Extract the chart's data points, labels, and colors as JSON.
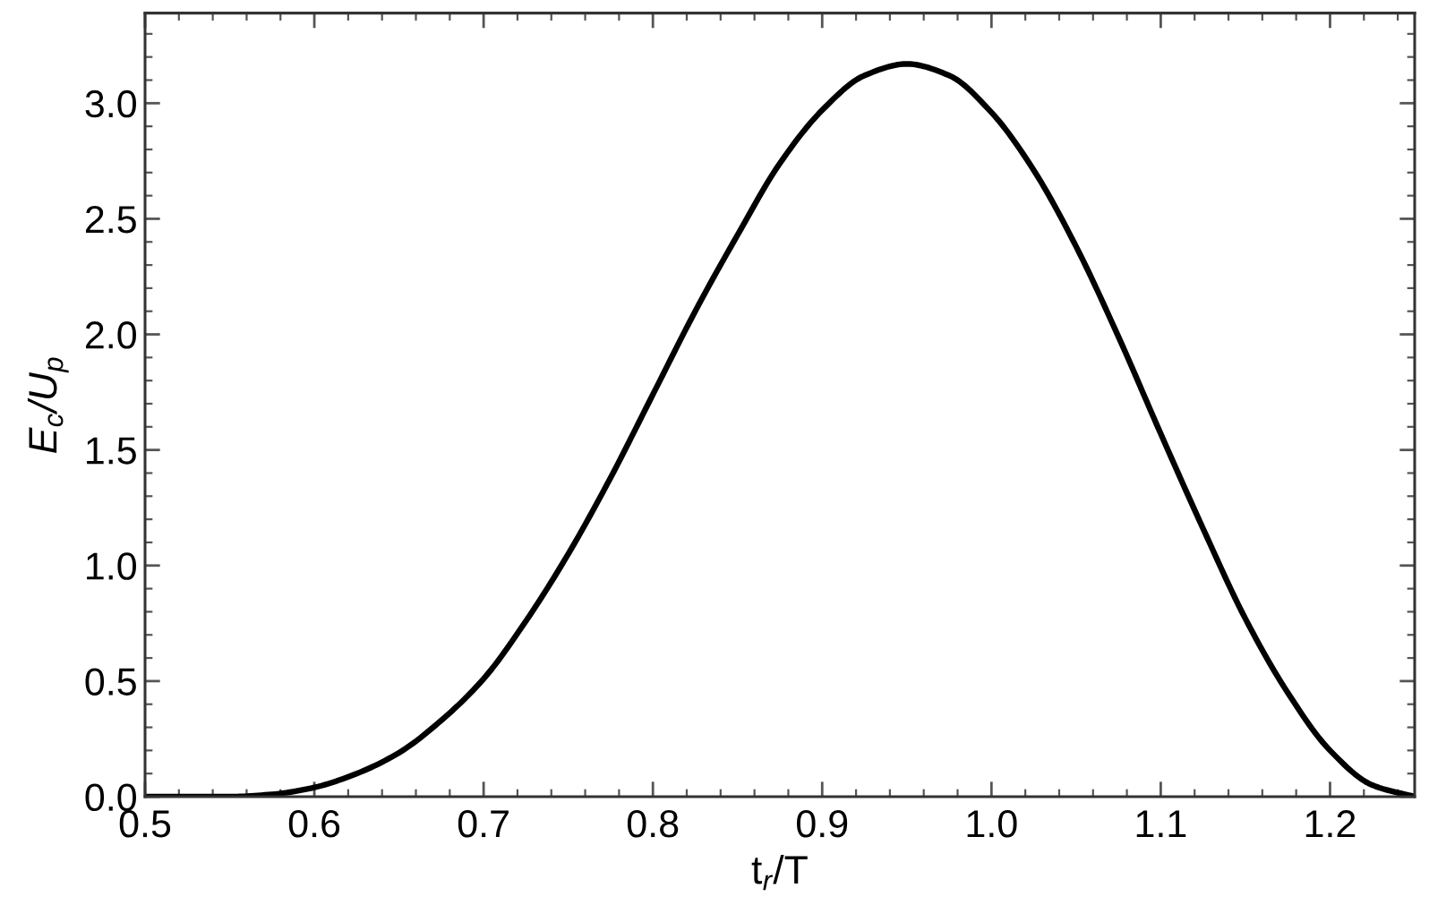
{
  "chart_data": {
    "type": "line",
    "xlabel": "t$_{r}$/T",
    "ylabel": "E$_{c}$/U$_{p}$",
    "x": [
      0.5,
      0.525,
      0.55,
      0.575,
      0.6,
      0.625,
      0.65,
      0.675,
      0.7,
      0.725,
      0.75,
      0.775,
      0.8,
      0.825,
      0.85,
      0.875,
      0.9,
      0.925,
      0.95,
      0.975,
      1.0,
      1.025,
      1.05,
      1.075,
      1.1,
      1.125,
      1.15,
      1.175,
      1.2,
      1.225,
      1.25
    ],
    "series": [
      {
        "color": "#000000",
        "values": [
          0.0,
          0.0,
          0.0,
          0.01,
          0.04,
          0.1,
          0.19,
          0.33,
          0.51,
          0.76,
          1.05,
          1.38,
          1.74,
          2.1,
          2.43,
          2.74,
          2.97,
          3.12,
          3.17,
          3.12,
          2.96,
          2.71,
          2.38,
          1.99,
          1.57,
          1.16,
          0.77,
          0.45,
          0.2,
          0.05,
          0.0
        ]
      }
    ],
    "xlim": [
      0.5,
      1.25
    ],
    "ylim": [
      0,
      3.39
    ],
    "xticks": [
      0.5,
      0.6,
      0.7,
      0.8,
      0.9,
      {
        "value": 1,
        "label": "1.0"
      },
      1.1,
      1.2
    ],
    "yticks": [
      {
        "value": 0,
        "label": "0.0"
      },
      0.5,
      {
        "value": 1,
        "label": "1.0"
      },
      1.5,
      {
        "value": 2,
        "label": "2.0"
      },
      2.5,
      {
        "value": 3,
        "label": "3.0"
      }
    ],
    "line_style": "solid"
  }
}
